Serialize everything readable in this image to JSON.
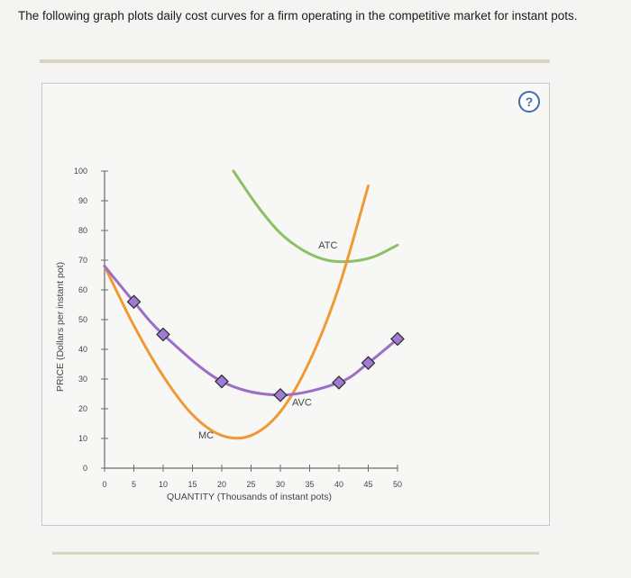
{
  "question": "The following graph plots daily cost curves for a firm operating in the competitive market for instant pots.",
  "help_label": "?",
  "chart_data": {
    "type": "line",
    "xlabel": "QUANTITY (Thousands of instant pots)",
    "ylabel": "PRICE (Dollars per instant pot)",
    "xlim": [
      0,
      50
    ],
    "ylim": [
      0,
      100
    ],
    "x_ticks": [
      0,
      5,
      10,
      15,
      20,
      25,
      30,
      35,
      40,
      45,
      50
    ],
    "y_ticks": [
      0,
      10,
      20,
      30,
      40,
      50,
      60,
      70,
      80,
      90,
      100
    ],
    "grid": true,
    "series": [
      {
        "name": "ATC",
        "color": "#8cc063",
        "x": [
          22,
          26,
          30,
          34,
          38,
          42,
          46,
          50
        ],
        "y": [
          100,
          88.5,
          79.1,
          73.2,
          70.0,
          69.6,
          71.2,
          75.1
        ],
        "label_at": [
          36.5,
          74
        ]
      },
      {
        "name": "MC",
        "color": "#ef9a34",
        "x": [
          0,
          5,
          10,
          15,
          20,
          25,
          30,
          35,
          40,
          45
        ],
        "y": [
          68,
          48,
          31,
          18,
          11,
          11,
          19,
          36,
          61,
          95
        ],
        "label_at": [
          16,
          10
        ]
      },
      {
        "name": "AVC",
        "color": "#9a6fc4",
        "x": [
          0,
          5,
          10,
          20,
          30,
          40,
          45,
          50
        ],
        "y": [
          68,
          56,
          45,
          29.2,
          24.6,
          28.8,
          35.4,
          43.5
        ],
        "markers": true,
        "label_at": [
          32,
          21
        ]
      }
    ],
    "markers": [
      {
        "x": 5,
        "y": 56
      },
      {
        "x": 10,
        "y": 45
      },
      {
        "x": 20,
        "y": 29.2
      },
      {
        "x": 30,
        "y": 24.6
      },
      {
        "x": 40,
        "y": 28.8
      },
      {
        "x": 45,
        "y": 35.4
      },
      {
        "x": 50,
        "y": 43.5
      }
    ]
  }
}
